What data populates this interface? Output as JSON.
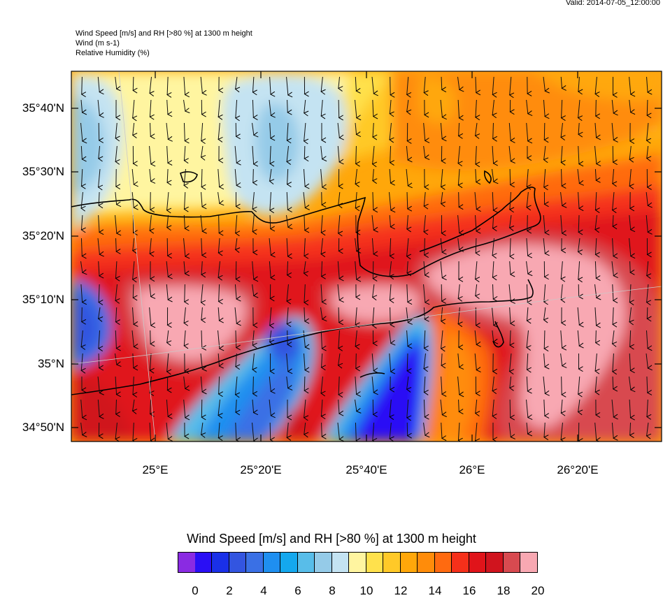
{
  "header": {
    "valid": "Valid: 2014-07-05_12:00:00",
    "line1": "Wind Speed [m/s] and RH [>80 %] at 1300 m height",
    "line2": "Wind   (m s-1)",
    "line3": "Relative Humidity   (%)"
  },
  "map": {
    "lat_labels": [
      "35°40'N",
      "35°30'N",
      "35°20'N",
      "35°10'N",
      "35°N",
      "34°50'N"
    ],
    "lon_labels": [
      "25°E",
      "25°20'E",
      "25°40'E",
      "26°E",
      "26°20'E"
    ],
    "wind_direction": "north-to-south"
  },
  "colorbar": {
    "title": "Wind Speed [m/s] and RH [>80 %] at 1300 m height",
    "colors": [
      "#8a2be2",
      "#2a0ff5",
      "#1a30e8",
      "#3355e0",
      "#3a70e5",
      "#1f8ff0",
      "#14a8ee",
      "#58bde9",
      "#95cbe8",
      "#c4e3f2",
      "#fff5a0",
      "#ffe14c",
      "#ffc928",
      "#ffa70a",
      "#ff8c0a",
      "#ff6a10",
      "#f5301a",
      "#e0141a",
      "#d0141e",
      "#d84a50",
      "#f8a8b2"
    ],
    "labels": [
      "0",
      "2",
      "4",
      "6",
      "8",
      "10",
      "12",
      "14",
      "16",
      "18",
      "20"
    ]
  }
}
